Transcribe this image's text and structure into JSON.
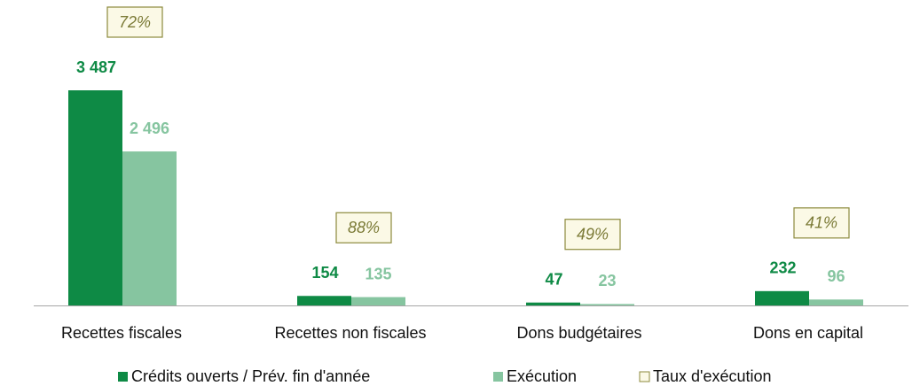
{
  "chart_data": {
    "type": "bar",
    "categories": [
      "Recettes fiscales",
      "Recettes non fiscales",
      "Dons budgétaires",
      "Dons en capital"
    ],
    "series": [
      {
        "name": "Crédits ouverts / Prév. fin d'année",
        "color": "#0e8a45",
        "values": [
          3487,
          154,
          47,
          232
        ],
        "value_labels": [
          "3 487",
          "154",
          "47",
          "232"
        ]
      },
      {
        "name": "Exécution",
        "color": "#86c5a0",
        "values": [
          2496,
          135,
          23,
          96
        ],
        "value_labels": [
          "2 496",
          "135",
          "23",
          "96"
        ]
      }
    ],
    "rate": {
      "name": "Taux d'exécution",
      "color": "#fbf9e6",
      "border": "#8c8a3c",
      "values": [
        72,
        88,
        49,
        41
      ],
      "value_labels": [
        "72%",
        "88%",
        "49%",
        "41%"
      ]
    },
    "legend": "bottom"
  }
}
